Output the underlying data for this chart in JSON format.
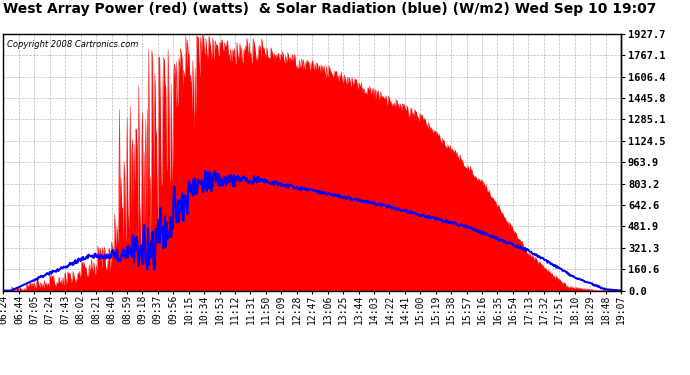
{
  "title": "West Array Power (red) (watts)  & Solar Radiation (blue) (W/m2) Wed Sep 10 19:07",
  "copyright": "Copyright 2008 Cartronics.com",
  "background_color": "#ffffff",
  "plot_bg_color": "#ffffff",
  "grid_color": "#aaaaaa",
  "y_ticks": [
    0.0,
    160.6,
    321.3,
    481.9,
    642.6,
    803.2,
    963.9,
    1124.5,
    1285.1,
    1445.8,
    1606.4,
    1767.1,
    1927.7
  ],
  "x_labels": [
    "06:24",
    "06:44",
    "07:05",
    "07:24",
    "07:43",
    "08:02",
    "08:21",
    "08:40",
    "08:59",
    "09:18",
    "09:37",
    "09:56",
    "10:15",
    "10:34",
    "10:53",
    "11:12",
    "11:31",
    "11:50",
    "12:09",
    "12:28",
    "12:47",
    "13:06",
    "13:25",
    "13:44",
    "14:03",
    "14:22",
    "14:41",
    "15:00",
    "15:19",
    "15:38",
    "15:57",
    "16:16",
    "16:35",
    "16:54",
    "17:13",
    "17:32",
    "17:51",
    "18:10",
    "18:29",
    "18:48",
    "19:07"
  ],
  "red_color": "#ff0000",
  "blue_color": "#0000ff",
  "title_fontsize": 10,
  "tick_fontsize": 7,
  "y_max": 1927.7
}
